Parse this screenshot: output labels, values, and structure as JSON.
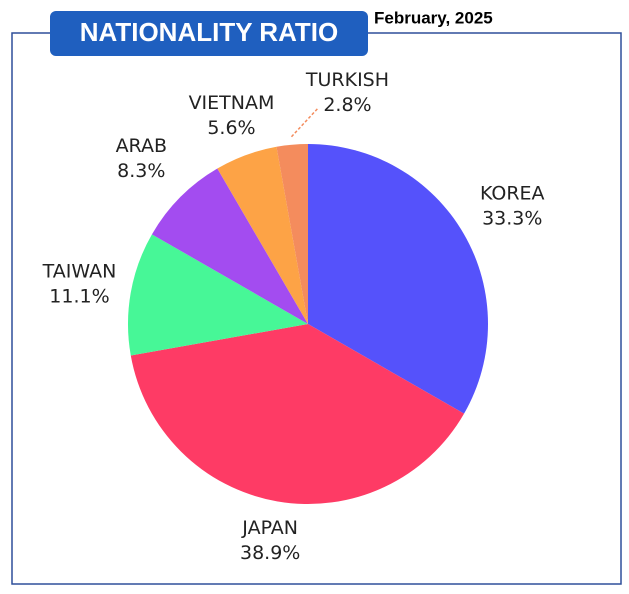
{
  "chart_data": {
    "type": "pie",
    "title": "NATIONALITY RATIO",
    "subtitle": "February, 2025",
    "categories": [
      "KOREA",
      "JAPAN",
      "TAIWAN",
      "ARAB",
      "VIETNAM",
      "TURKISH"
    ],
    "values": [
      33.3,
      38.9,
      11.1,
      8.3,
      5.6,
      2.8
    ],
    "value_labels": [
      "33.3%",
      "38.9%",
      "11.1%",
      "8.3%",
      "5.6%",
      "2.8%"
    ],
    "colors": [
      "#5552fb",
      "#fe3b65",
      "#47f797",
      "#a34cf0",
      "#fda346",
      "#f48c5d"
    ]
  }
}
